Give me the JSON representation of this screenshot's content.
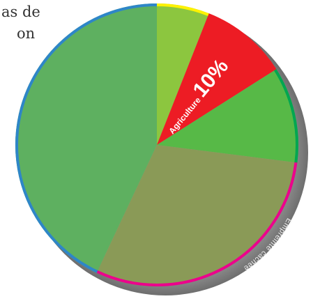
{
  "chart_data": {
    "type": "pie",
    "intro_lines": [
      "as de",
      "on"
    ],
    "categories": [
      null,
      "Agriculture",
      null,
      null,
      null
    ],
    "values": [
      6,
      10,
      11,
      30,
      43
    ],
    "value_labels": [
      null,
      "10%",
      null,
      null,
      null
    ],
    "colors": [
      "#8cc63f",
      "#ed1c24",
      "#57b947",
      "#8a9a57",
      "#5eb060"
    ],
    "rim_colors": [
      "#fff200",
      "#ed1c24",
      "#00a651",
      "#ec008c",
      "#2e86c8"
    ],
    "annotation": "Empreinte cachée"
  }
}
